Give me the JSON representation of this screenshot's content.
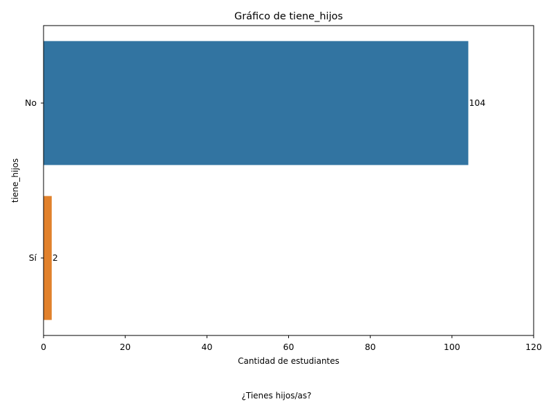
{
  "colors": {
    "bar_colors": [
      "#3274a1",
      "#e1812c"
    ],
    "axis": "#000000",
    "text": "#000000",
    "background": "#ffffff"
  },
  "chart_data": {
    "type": "bar",
    "orientation": "horizontal",
    "title": "Gráfico de tiene_hijos",
    "xlabel": "Cantidad de estudiantes",
    "ylabel": "tiene_hijos",
    "categories": [
      "No",
      "Sí"
    ],
    "values": [
      104,
      2
    ],
    "data_labels": [
      "104",
      "2"
    ],
    "xlim": [
      0,
      120
    ],
    "xticks": [
      0,
      20,
      40,
      60,
      80,
      100,
      120
    ],
    "xtick_labels": [
      "0",
      "20",
      "40",
      "60",
      "80",
      "100",
      "120"
    ],
    "grid": false,
    "legend": "none"
  },
  "caption": "¿Tienes hijos/as?"
}
